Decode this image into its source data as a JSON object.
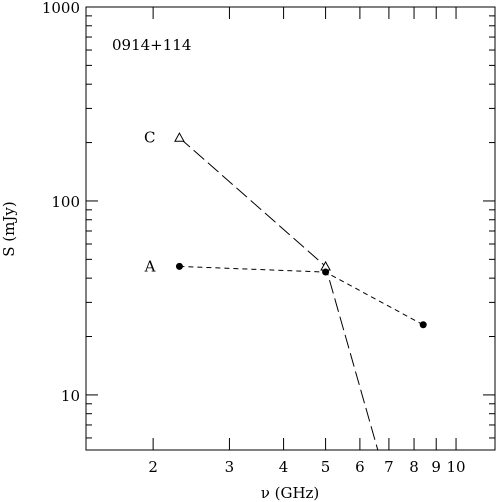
{
  "chart_data": {
    "type": "line",
    "title": "0914+114",
    "xlabel": "ν (GHz)",
    "ylabel": "S (mJy)",
    "x_scale": "log",
    "y_scale": "log",
    "xlim": [
      1.4,
      12.3
    ],
    "ylim": [
      5.2,
      1000
    ],
    "x_major_ticks": [
      2,
      3,
      4,
      5,
      6,
      7,
      8,
      9,
      10
    ],
    "x_tick_labels": [
      "2",
      "3",
      "4",
      "5",
      "6",
      "7",
      "8",
      "9",
      "10"
    ],
    "y_major_ticks": [
      10,
      100,
      1000
    ],
    "y_tick_labels": [
      "10",
      "100",
      "1000"
    ],
    "grid": false,
    "series": [
      {
        "name": "C",
        "marker": "open-triangle",
        "line_style": "long-dash",
        "x": [
          2.3,
          5.0,
          6.6
        ],
        "y": [
          212,
          46,
          5.2
        ]
      },
      {
        "name": "A",
        "marker": "filled-circle",
        "line_style": "short-dash",
        "x": [
          2.3,
          5.0,
          8.4
        ],
        "y": [
          46,
          43,
          23
        ]
      }
    ]
  }
}
